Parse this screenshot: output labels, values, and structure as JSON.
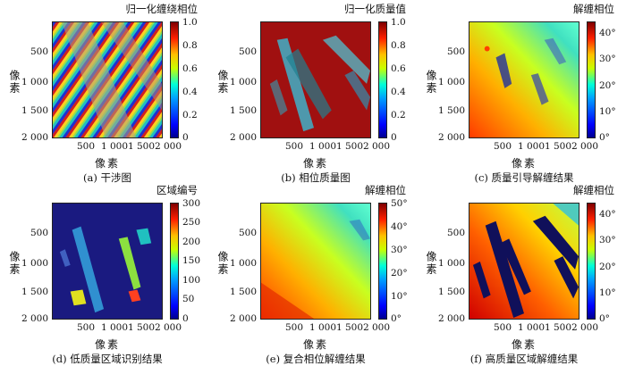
{
  "axis_label": "像素",
  "x_ticks": [
    "500",
    "1 000",
    "1 500",
    "2 000"
  ],
  "y_ticks": [
    "500",
    "1 000",
    "1 500",
    "2 000"
  ],
  "panels": [
    {
      "title": "归一化缠绕相位",
      "caption": "(a) 干涉图",
      "colorbar_ticks": [
        "1.0",
        "0.8",
        "0.6",
        "0.4",
        "0.2",
        "0"
      ],
      "image": "wrapped-phase-fringes"
    },
    {
      "title": "归一化质量值",
      "caption": "(b) 相位质量图",
      "colorbar_ticks": [
        "1.0",
        "0.8",
        "0.6",
        "0.4",
        "0.2",
        "0"
      ],
      "image": "quality-map"
    },
    {
      "title": "解缠相位",
      "caption": "(c) 质量引导解缠结果",
      "colorbar_ticks": [
        "40°",
        "30°",
        "20°",
        "10°",
        "0°"
      ],
      "image": "quality-guided-unwrapping"
    },
    {
      "title": "区域编号",
      "caption": "(d) 低质量区域识别结果",
      "colorbar_ticks": [
        "300",
        "250",
        "200",
        "150",
        "100",
        "50",
        "0"
      ],
      "image": "low-quality-regions"
    },
    {
      "title": "解缠相位",
      "caption": "(e) 复合相位解缠结果",
      "colorbar_ticks": [
        "50°",
        "40°",
        "30°",
        "20°",
        "10°",
        "0°"
      ],
      "image": "compound-unwrapping"
    },
    {
      "title": "解缠相位",
      "caption": "(f) 高质量区域解缠结果",
      "colorbar_ticks": [
        "40°",
        "30°",
        "20°",
        "10°",
        "0°"
      ],
      "image": "high-quality-unwrapping"
    }
  ]
}
